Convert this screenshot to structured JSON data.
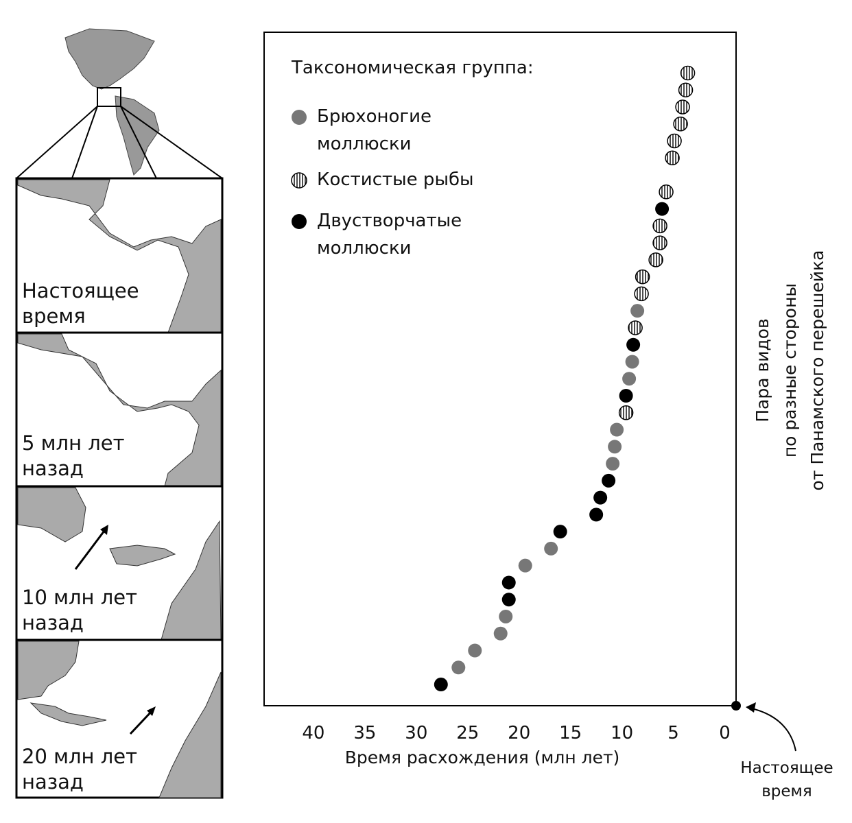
{
  "chart_data": {
    "type": "scatter",
    "legend_title": "Таксономическая группа:",
    "xlabel": "Время расхождения (млн лет)",
    "ylabel": [
      "Пара видов",
      "по разные стороны",
      "от Панамского перешейка"
    ],
    "annotation": "Настоящее время",
    "xlim": [
      44.8,
      -1.1
    ],
    "xticks": [
      40,
      35,
      30,
      25,
      20,
      15,
      10,
      5,
      0
    ],
    "ylim": [
      -0.25,
      39.4
    ],
    "grid": false,
    "series": [
      {
        "name": "Брюхоногие моллюски",
        "color": "#777777",
        "marker": "solid",
        "x": [
          25.9,
          24.3,
          21.8,
          21.3,
          19.4,
          16.9,
          10.9,
          10.7,
          10.5,
          9.3,
          9.0,
          8.5
        ],
        "y": [
          2,
          3,
          4,
          5,
          8,
          9,
          14,
          15,
          16,
          19,
          20,
          23
        ]
      },
      {
        "name": "Костистые рыбы",
        "color": "#ffffff",
        "marker": "hatched",
        "x": [
          9.6,
          8.7,
          8.1,
          8.0,
          6.7,
          6.3,
          6.3,
          5.7,
          5.1,
          4.9,
          4.3,
          4.1,
          3.8,
          3.6
        ],
        "y": [
          17,
          22,
          24,
          25,
          26,
          27,
          28,
          30,
          32,
          33,
          34,
          35,
          36,
          37
        ]
      },
      {
        "name": "Двустворчатые моллюски",
        "color": "#000000",
        "marker": "solid",
        "x": [
          27.6,
          21.0,
          21.0,
          16.0,
          12.5,
          12.1,
          11.3,
          9.6,
          8.9,
          6.1
        ],
        "y": [
          1,
          6,
          7,
          10,
          11,
          12,
          13,
          18,
          21,
          29
        ]
      }
    ]
  },
  "maps": {
    "panels": [
      "Настоящее время",
      "5 млн лет назад",
      "10 млн лет назад",
      "20 млн лет назад"
    ]
  }
}
